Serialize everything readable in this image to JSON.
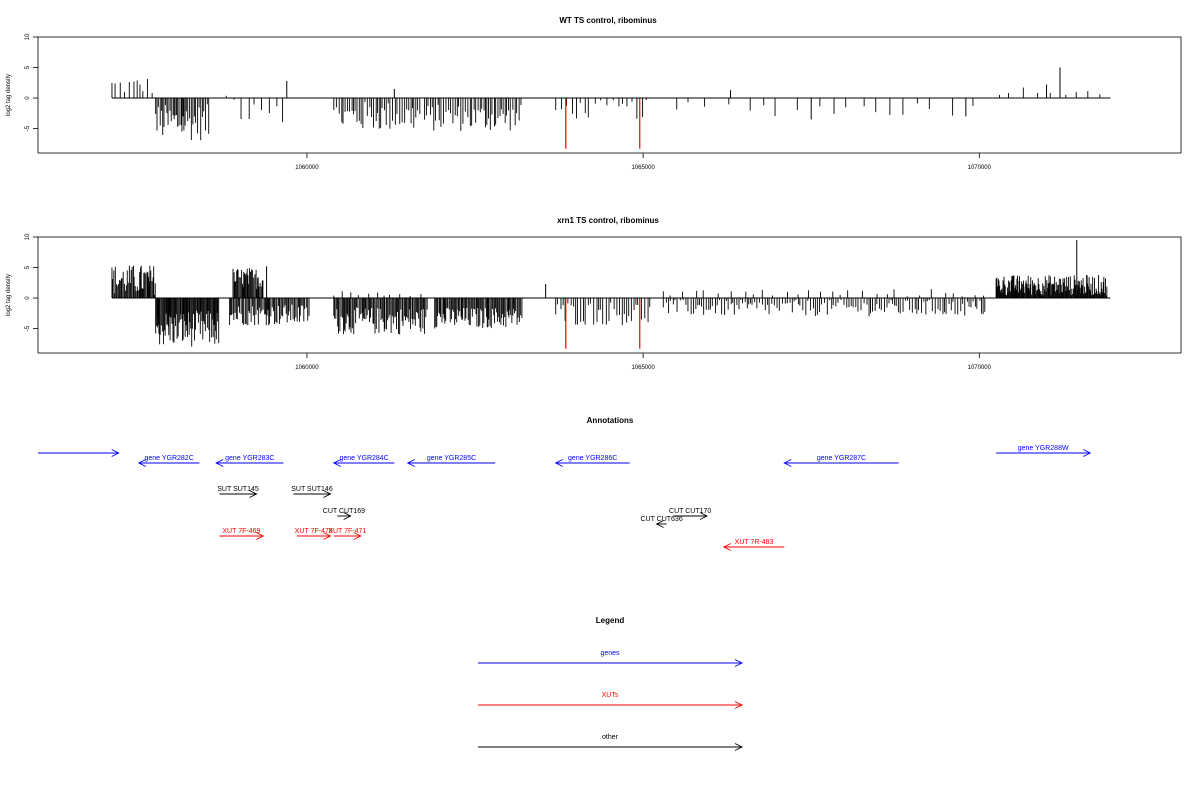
{
  "chart_data": [
    {
      "type": "bar",
      "title": "WT TS control, ribominus",
      "ylabel": "log2 tag density",
      "xlim": [
        1056000,
        1073000
      ],
      "ylim": [
        -9,
        10
      ],
      "yticks": [
        -5,
        0,
        5,
        10
      ],
      "xticks": [
        1060000,
        1065000,
        1070000
      ],
      "grid": false,
      "baseline": 0,
      "regions": [
        {
          "start": 1057100,
          "end": 1057700,
          "min": 0.5,
          "max": 3.5,
          "step": 55
        },
        {
          "start": 1057750,
          "end": 1058550,
          "min": -7.0,
          "max": -1.0,
          "step": 22
        },
        {
          "start": 1058800,
          "end": 1059700,
          "min": -4.0,
          "max": 2.5,
          "step": 90
        },
        {
          "start": 1060400,
          "end": 1061700,
          "min": -5.5,
          "max": -0.5,
          "step": 30
        },
        {
          "start": 1061750,
          "end": 1063200,
          "min": -5.5,
          "max": -1.0,
          "step": 28
        },
        {
          "start": 1063700,
          "end": 1065100,
          "min": -3.5,
          "max": -0.3,
          "step": 75
        },
        {
          "start": 1065500,
          "end": 1070000,
          "min": -3.0,
          "max": -0.5,
          "step": 260
        },
        {
          "start": 1070300,
          "end": 1071800,
          "min": 0.5,
          "max": 2.0,
          "step": 190
        }
      ],
      "spikes": [
        {
          "x": 1059700,
          "y": 2.8
        },
        {
          "x": 1061300,
          "y": 1.5
        },
        {
          "x": 1066300,
          "y": 1.3
        },
        {
          "x": 1067500,
          "y": -3.5
        },
        {
          "x": 1069800,
          "y": -3.0
        },
        {
          "x": 1071200,
          "y": 5.0
        },
        {
          "x": 1071000,
          "y": 2.2
        }
      ],
      "highlight_color": "#ff0000",
      "highlights": [
        {
          "x": 1063850,
          "y": -8.3
        },
        {
          "x": 1064950,
          "y": -8.3
        }
      ]
    },
    {
      "type": "bar",
      "title": "xrn1 TS control, ribominus",
      "ylabel": "log2 tag density",
      "xlim": [
        1056000,
        1073000
      ],
      "ylim": [
        -9,
        10
      ],
      "yticks": [
        -5,
        0,
        5,
        10
      ],
      "xticks": [
        1060000,
        1065000,
        1070000
      ],
      "grid": false,
      "baseline": 0,
      "regions": [
        {
          "start": 1057100,
          "end": 1057750,
          "min": 0.5,
          "max": 5.5,
          "step": 14
        },
        {
          "start": 1057750,
          "end": 1058700,
          "min": -8.0,
          "max": -2.0,
          "step": 12
        },
        {
          "start": 1058900,
          "end": 1059350,
          "min": 1.5,
          "max": 5.0,
          "step": 14
        },
        {
          "start": 1058850,
          "end": 1060050,
          "min": -4.5,
          "max": -1.0,
          "step": 18
        },
        {
          "start": 1060400,
          "end": 1061800,
          "min": -6.0,
          "max": -1.5,
          "step": 16
        },
        {
          "start": 1060400,
          "end": 1061800,
          "min": 0.3,
          "max": 1.2,
          "step": 120
        },
        {
          "start": 1061900,
          "end": 1063200,
          "min": -5.0,
          "max": -1.5,
          "step": 16
        },
        {
          "start": 1063700,
          "end": 1065100,
          "min": -4.5,
          "max": -0.5,
          "step": 40
        },
        {
          "start": 1065300,
          "end": 1070100,
          "min": -3.0,
          "max": -0.3,
          "step": 35
        },
        {
          "start": 1065300,
          "end": 1070100,
          "min": 0.2,
          "max": 1.5,
          "step": 160
        },
        {
          "start": 1070250,
          "end": 1071900,
          "min": 0.4,
          "max": 3.8,
          "step": 10
        }
      ],
      "spikes": [
        {
          "x": 1063550,
          "y": 2.3
        },
        {
          "x": 1071450,
          "y": 9.5
        },
        {
          "x": 1059400,
          "y": 5.2
        }
      ],
      "highlight_color": "#ff0000",
      "highlights": [
        {
          "x": 1063850,
          "y": -8.3
        },
        {
          "x": 1064950,
          "y": -8.3
        }
      ]
    }
  ],
  "annotations": {
    "title": "Annotations",
    "items": [
      {
        "label": "",
        "start": 1056000,
        "end": 1057200,
        "row": 0,
        "strand": "+",
        "kind": "gene"
      },
      {
        "label": "gene YGR282C",
        "start": 1057500,
        "end": 1058400,
        "row": 1,
        "strand": "-",
        "kind": "gene"
      },
      {
        "label": "gene YGR283C",
        "start": 1058650,
        "end": 1059650,
        "row": 1,
        "strand": "-",
        "kind": "gene"
      },
      {
        "label": "gene YGR284C",
        "start": 1060400,
        "end": 1061300,
        "row": 1,
        "strand": "-",
        "kind": "gene"
      },
      {
        "label": "gene YGR285C",
        "start": 1061500,
        "end": 1062800,
        "row": 1,
        "strand": "-",
        "kind": "gene"
      },
      {
        "label": "gene YGR286C",
        "start": 1063700,
        "end": 1064800,
        "row": 1,
        "strand": "-",
        "kind": "gene"
      },
      {
        "label": "gene YGR287C",
        "start": 1067100,
        "end": 1068800,
        "row": 1,
        "strand": "-",
        "kind": "gene"
      },
      {
        "label": "gene YGR288W",
        "start": 1070250,
        "end": 1071650,
        "row": 0,
        "strand": "+",
        "kind": "gene"
      },
      {
        "label": "SUT SUT145",
        "start": 1058700,
        "end": 1059250,
        "row": 2,
        "strand": "+",
        "kind": "other"
      },
      {
        "label": "SUT SUT146",
        "start": 1059800,
        "end": 1060350,
        "row": 2,
        "strand": "+",
        "kind": "other"
      },
      {
        "label": "CUT CUT169",
        "start": 1060450,
        "end": 1060650,
        "row": 3,
        "strand": "+",
        "kind": "other"
      },
      {
        "label": "CUT CUT170",
        "start": 1065450,
        "end": 1065950,
        "row": 3,
        "strand": "+",
        "kind": "other"
      },
      {
        "label": "CUT CUT636",
        "start": 1065200,
        "end": 1065350,
        "row": 4,
        "strand": "-",
        "kind": "other"
      },
      {
        "label": "XUT 7F-469",
        "start": 1058700,
        "end": 1059350,
        "row": 5,
        "strand": "+",
        "kind": "xut"
      },
      {
        "label": "XUT 7F-470",
        "start": 1059850,
        "end": 1060350,
        "row": 5,
        "strand": "+",
        "kind": "xut"
      },
      {
        "label": "XUT 7F-471",
        "start": 1060400,
        "end": 1060800,
        "row": 5,
        "strand": "+",
        "kind": "xut"
      },
      {
        "label": "XUT 7R-483",
        "start": 1066200,
        "end": 1067100,
        "row": 6,
        "strand": "-",
        "kind": "xut"
      }
    ]
  },
  "legend": {
    "title": "Legend",
    "entries": [
      {
        "label": "genes",
        "kind": "gene"
      },
      {
        "label": "XUTs",
        "kind": "xut"
      },
      {
        "label": "other",
        "kind": "other"
      }
    ]
  },
  "colors": {
    "gene": "#0000ff",
    "xut": "#ff0000",
    "other": "#000000",
    "bars": "#000000"
  }
}
